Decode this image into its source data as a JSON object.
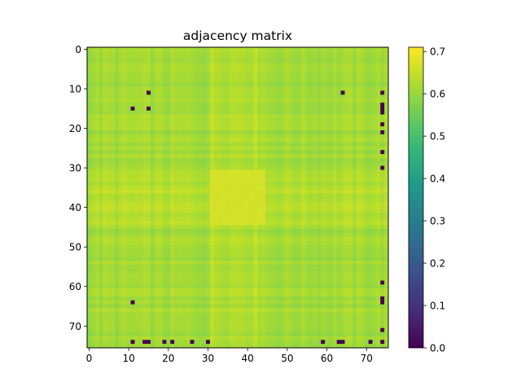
{
  "chart_data": {
    "type": "heatmap",
    "title": "adjacency matrix",
    "n": 76,
    "x_ticks": [
      0,
      10,
      20,
      30,
      40,
      50,
      60,
      70
    ],
    "y_ticks": [
      0,
      10,
      20,
      30,
      40,
      50,
      60,
      70
    ],
    "xlim": [
      -0.5,
      75.5
    ],
    "ylim": [
      75.5,
      -0.5
    ],
    "colormap": "viridis",
    "color_range": [
      0.0,
      0.71
    ],
    "colorbar_ticks": [
      "0.0",
      "0.1",
      "0.2",
      "0.3",
      "0.4",
      "0.5",
      "0.6",
      "0.7"
    ],
    "colorbar_tick_values": [
      0.0,
      0.1,
      0.2,
      0.3,
      0.4,
      0.5,
      0.6,
      0.7
    ],
    "background_value_range": [
      0.55,
      0.67
    ],
    "bright_block": {
      "rows": [
        31,
        44
      ],
      "cols": [
        31,
        44
      ],
      "value": 0.67
    },
    "zero_cells": [
      [
        11,
        15
      ],
      [
        11,
        64
      ],
      [
        11,
        74
      ],
      [
        14,
        74
      ],
      [
        15,
        11
      ],
      [
        15,
        15
      ],
      [
        15,
        74
      ],
      [
        16,
        74
      ],
      [
        19,
        74
      ],
      [
        21,
        74
      ],
      [
        26,
        74
      ],
      [
        30,
        74
      ],
      [
        59,
        74
      ],
      [
        63,
        74
      ],
      [
        64,
        11
      ],
      [
        64,
        74
      ],
      [
        71,
        74
      ],
      [
        74,
        11
      ],
      [
        74,
        14
      ],
      [
        74,
        15
      ],
      [
        74,
        19
      ],
      [
        74,
        21
      ],
      [
        74,
        26
      ],
      [
        74,
        30
      ],
      [
        74,
        59
      ],
      [
        74,
        63
      ],
      [
        74,
        64
      ],
      [
        74,
        71
      ],
      [
        74,
        74
      ]
    ]
  }
}
